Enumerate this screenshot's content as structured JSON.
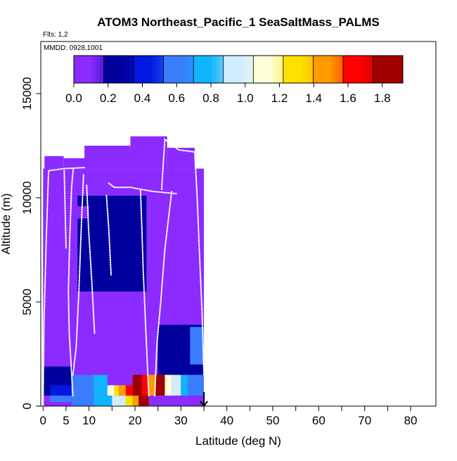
{
  "chart_data": {
    "type": "heatmap",
    "title": "ATOM3 Northeast_Pacific_1 SeaSaltMass_PALMS",
    "subtitle_flights": "Flts: 1,2",
    "subtitle_dates": "MMDD: 0928,1001",
    "xlabel": "Latitude (deg N)",
    "ylabel": "Altitude (m)",
    "xlim": [
      -0.5,
      85.5
    ],
    "ylim": [
      0,
      17500
    ],
    "x_ticks": [
      0,
      5,
      10,
      20,
      30,
      40,
      50,
      60,
      70,
      80
    ],
    "x_minor_ticks": [
      15,
      25,
      35,
      45,
      55,
      65,
      75
    ],
    "y_ticks": [
      0,
      5000,
      10000,
      15000
    ],
    "colorbar": {
      "ticks": [
        0.0,
        0.2,
        0.4,
        0.6,
        0.8,
        1.0,
        1.2,
        1.4,
        1.6,
        1.8
      ],
      "tick_labels": [
        "0.0",
        "0.2",
        "0.4",
        "0.6",
        "0.8",
        "1.0",
        "1.2",
        "1.4",
        "1.6",
        "1.8"
      ],
      "min": 0.0,
      "max": 1.92,
      "colors": [
        "#8B2BFF",
        "#00009C",
        "#0018E0",
        "#3A7EFF",
        "#10B4FF",
        "#D0EEFF",
        "#FFFFD8",
        "#FFE000",
        "#FF9A00",
        "#FF0000",
        "#A00000"
      ]
    },
    "arrow_marker": {
      "latitude": 35,
      "altitude": 0
    },
    "cells": [
      {
        "x0": 0,
        "x1": 35,
        "y0": 0,
        "y1": 11400,
        "value": 0.05
      },
      {
        "x0": 0.3,
        "x1": 4.5,
        "y0": 11400,
        "y1": 12000,
        "value": 0.05
      },
      {
        "x0": 4.5,
        "x1": 10,
        "y0": 11400,
        "y1": 11900,
        "value": 0.05
      },
      {
        "x0": 9,
        "x1": 19,
        "y0": 11400,
        "y1": 12500,
        "value": 0.05
      },
      {
        "x0": 19,
        "x1": 27,
        "y0": 11400,
        "y1": 12950,
        "value": 0.05
      },
      {
        "x0": 27,
        "x1": 33,
        "y0": 11400,
        "y1": 12400,
        "value": 0.05
      },
      {
        "x0": 7.5,
        "x1": 22.5,
        "y0": 5500,
        "y1": 10100,
        "value": 0.18
      },
      {
        "x0": 10,
        "x1": 20.5,
        "y0": 6200,
        "y1": 9900,
        "value": 0.22
      },
      {
        "x0": 5.5,
        "x1": 10,
        "y0": 9000,
        "y1": 9600,
        "value": 0.14
      },
      {
        "x0": 25,
        "x1": 35,
        "y0": 1800,
        "y1": 3900,
        "value": 0.22
      },
      {
        "x0": 27,
        "x1": 33,
        "y0": 2000,
        "y1": 3200,
        "value": 0.32
      },
      {
        "x0": 32,
        "x1": 35,
        "y0": 2000,
        "y1": 3800,
        "value": 0.55
      },
      {
        "x0": 0,
        "x1": 6.5,
        "y0": 1000,
        "y1": 1900,
        "value": 0.21
      },
      {
        "x0": 6.5,
        "x1": 12,
        "y0": 1500,
        "y1": 2000,
        "value": 0.12
      },
      {
        "x0": 25,
        "x1": 35,
        "y0": 1500,
        "y1": 1900,
        "value": 0.32
      },
      {
        "x0": 0,
        "x1": 1.5,
        "y0": 500,
        "y1": 1000,
        "value": 0.2
      },
      {
        "x0": 1.5,
        "x1": 6.2,
        "y0": 500,
        "y1": 1000,
        "value": 0.36
      },
      {
        "x0": 6.2,
        "x1": 11,
        "y0": 500,
        "y1": 1500,
        "value": 0.68
      },
      {
        "x0": 11,
        "x1": 14,
        "y0": 500,
        "y1": 1500,
        "value": 0.85
      },
      {
        "x0": 14,
        "x1": 15.5,
        "y0": 500,
        "y1": 1000,
        "value": 1.05
      },
      {
        "x0": 15.5,
        "x1": 16.5,
        "y0": 500,
        "y1": 1000,
        "value": 1.25
      },
      {
        "x0": 16.5,
        "x1": 18,
        "y0": 500,
        "y1": 1000,
        "value": 1.45
      },
      {
        "x0": 18,
        "x1": 19.5,
        "y0": 500,
        "y1": 1000,
        "value": 1.65
      },
      {
        "x0": 19.5,
        "x1": 21.5,
        "y0": 500,
        "y1": 1500,
        "value": 1.8
      },
      {
        "x0": 21.5,
        "x1": 23,
        "y0": 500,
        "y1": 1500,
        "value": 1.6
      },
      {
        "x0": 23,
        "x1": 24.5,
        "y0": 500,
        "y1": 1500,
        "value": 1.4
      },
      {
        "x0": 24.5,
        "x1": 26.5,
        "y0": 500,
        "y1": 1500,
        "value": 1.78
      },
      {
        "x0": 26.5,
        "x1": 28,
        "y0": 500,
        "y1": 1500,
        "value": 1.2
      },
      {
        "x0": 28,
        "x1": 30,
        "y0": 500,
        "y1": 1500,
        "value": 0.92
      },
      {
        "x0": 30,
        "x1": 31.5,
        "y0": 500,
        "y1": 1500,
        "value": 0.85
      },
      {
        "x0": 31.5,
        "x1": 35,
        "y0": 500,
        "y1": 1500,
        "value": 0.6
      },
      {
        "x0": 1.5,
        "x1": 6.2,
        "y0": 200,
        "y1": 500,
        "value": 0.62
      },
      {
        "x0": 6.2,
        "x1": 11,
        "y0": 0,
        "y1": 500,
        "value": 0.66
      },
      {
        "x0": 11,
        "x1": 15,
        "y0": 0,
        "y1": 500,
        "value": 0.82
      },
      {
        "x0": 15,
        "x1": 18,
        "y0": 0,
        "y1": 500,
        "value": 1.0
      },
      {
        "x0": 18,
        "x1": 19.5,
        "y0": 0,
        "y1": 500,
        "value": 1.3
      },
      {
        "x0": 19.5,
        "x1": 20.8,
        "y0": 0,
        "y1": 500,
        "value": 1.55
      },
      {
        "x0": 20.8,
        "x1": 22,
        "y0": 0,
        "y1": 500,
        "value": 1.75
      },
      {
        "x0": 22,
        "x1": 23,
        "y0": 0,
        "y1": 500,
        "value": 1.85
      },
      {
        "x0": 23,
        "x1": 35,
        "y0": 0,
        "y1": 500,
        "value": 0.05
      }
    ],
    "flight_tracks": [
      [
        [
          0,
          0
        ],
        [
          0.2,
          4000
        ],
        [
          0.7,
          8000
        ],
        [
          1.2,
          11300
        ]
      ],
      [
        [
          1.3,
          11300
        ],
        [
          4.5,
          11400
        ],
        [
          9,
          11450
        ]
      ],
      [
        [
          4.6,
          11300
        ],
        [
          4.8,
          9500
        ],
        [
          5,
          7600
        ]
      ],
      [
        [
          6.5,
          500
        ],
        [
          5.7,
          3500
        ],
        [
          5.5,
          5500
        ],
        [
          5.8,
          8000
        ],
        [
          6.2,
          10500
        ],
        [
          6.6,
          11450
        ]
      ],
      [
        [
          8.8,
          11100
        ],
        [
          8.3,
          8500
        ],
        [
          7.8,
          5500
        ],
        [
          7.2,
          2800
        ],
        [
          6.5,
          1500
        ]
      ],
      [
        [
          9.5,
          10600
        ],
        [
          9.9,
          8500
        ],
        [
          10.6,
          6000
        ],
        [
          11.2,
          3500
        ]
      ],
      [
        [
          13.8,
          10100
        ],
        [
          14.3,
          8500
        ],
        [
          14.8,
          6300
        ]
      ],
      [
        [
          14.3,
          10700
        ],
        [
          15.5,
          10500
        ],
        [
          19,
          10500
        ],
        [
          24,
          10300
        ],
        [
          29,
          10200
        ]
      ],
      [
        [
          23,
          500
        ],
        [
          22.4,
          3500
        ],
        [
          21.8,
          6500
        ],
        [
          21.5,
          8500
        ],
        [
          21.2,
          10400
        ]
      ],
      [
        [
          25.8,
          10400
        ],
        [
          26.5,
          12800
        ],
        [
          29.5,
          12300
        ],
        [
          33,
          12200
        ],
        [
          33.5,
          10200
        ],
        [
          34,
          7500
        ],
        [
          34.6,
          4500
        ],
        [
          35,
          1500
        ]
      ],
      [
        [
          28,
          10300
        ],
        [
          26.5,
          7500
        ],
        [
          25.6,
          5000
        ],
        [
          24.8,
          3000
        ],
        [
          24.3,
          500
        ]
      ]
    ]
  }
}
